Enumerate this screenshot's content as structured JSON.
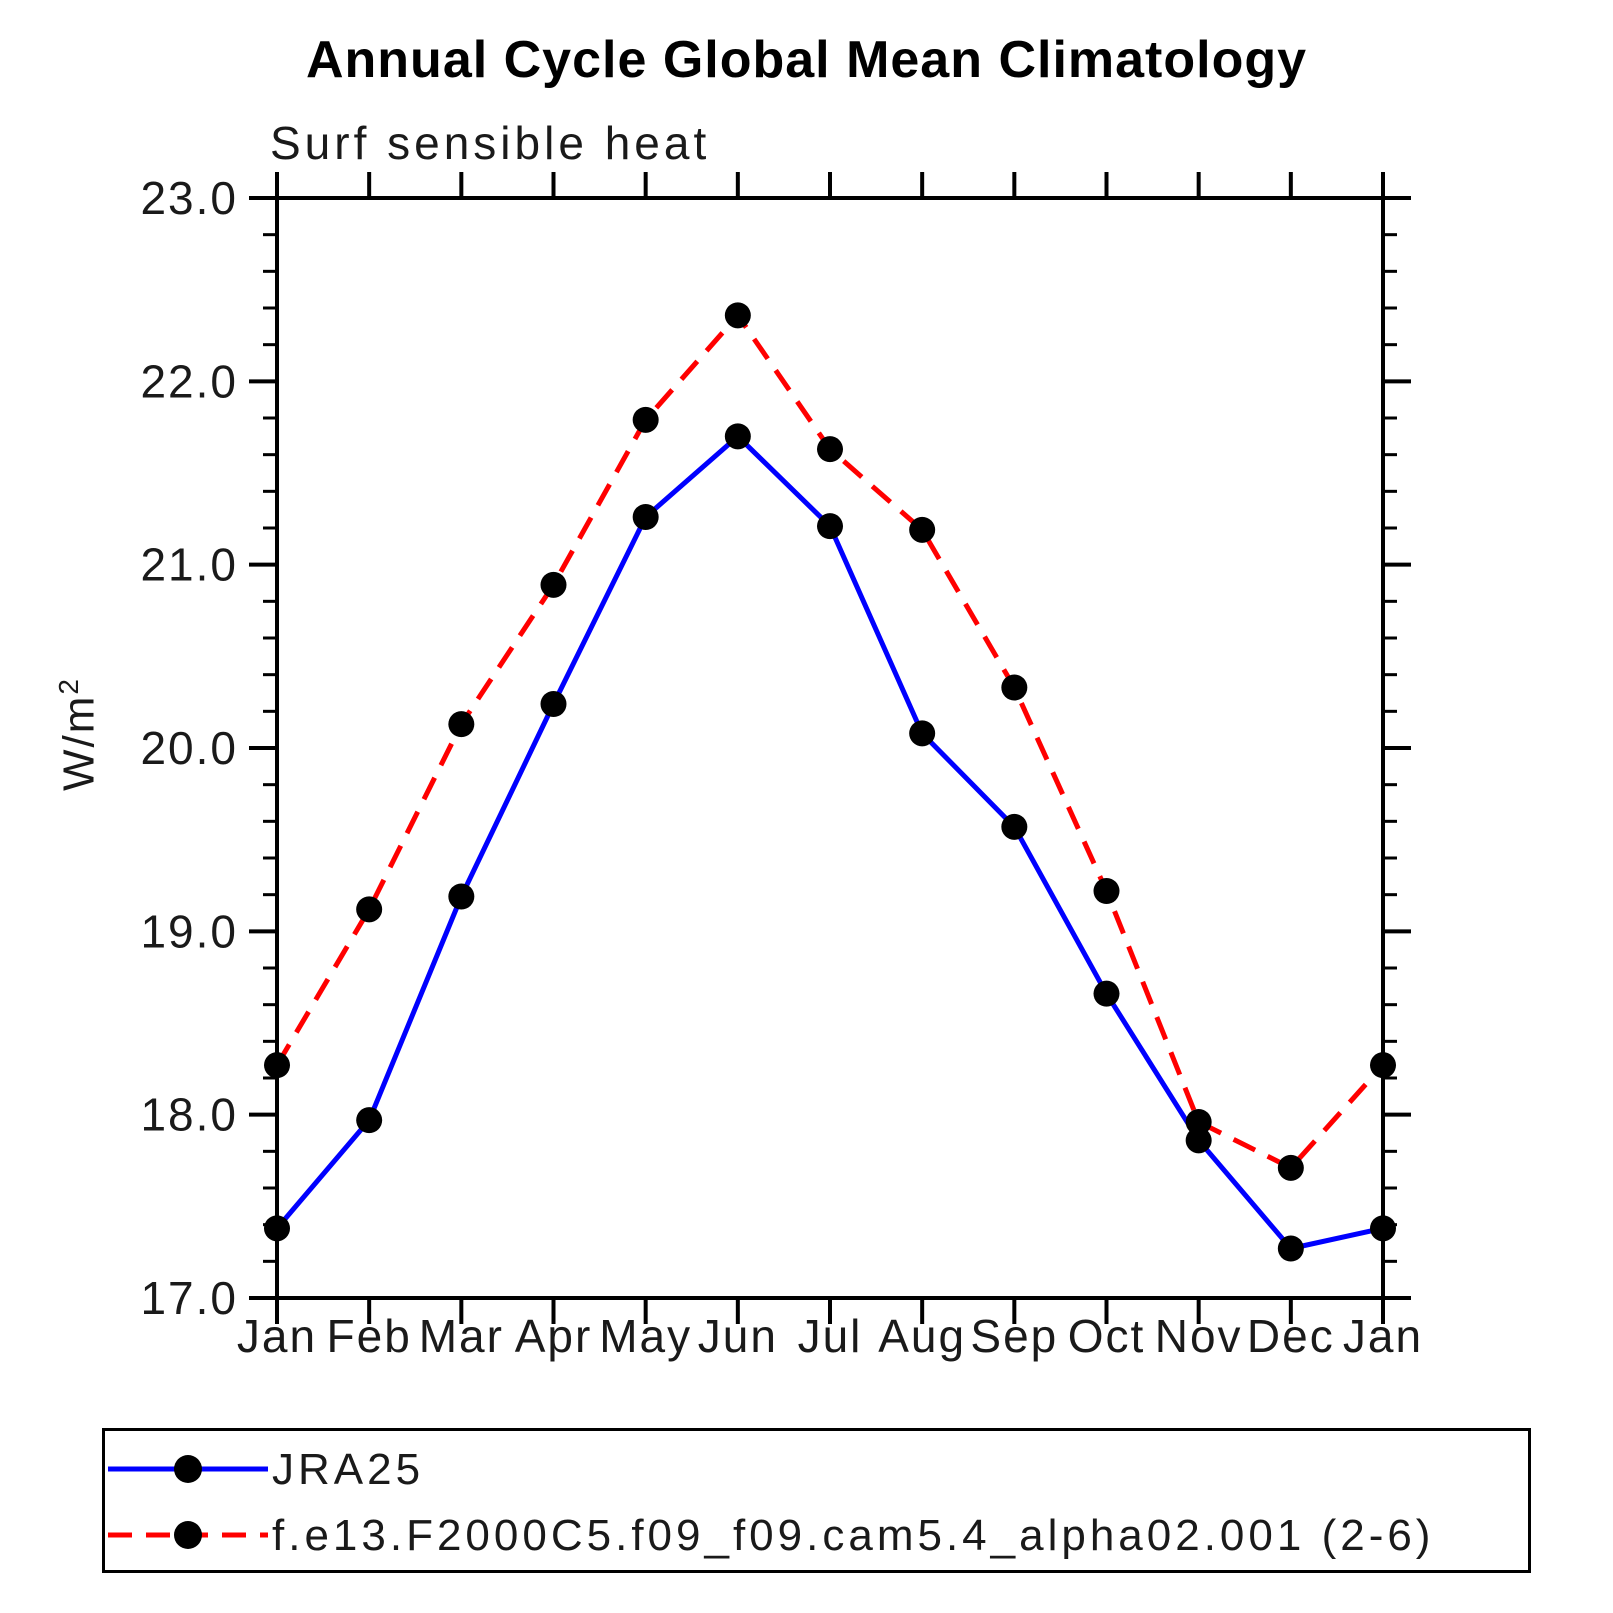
{
  "title": "Annual Cycle Global Mean Climatology",
  "subtitle": "Surf sensible heat",
  "y_axis_title": {
    "base": "W/m",
    "sup": "2"
  },
  "chart_data": {
    "type": "line",
    "title": "Annual Cycle Global Mean Climatology",
    "subtitle": "Surf sensible heat",
    "ylabel": "W/m2",
    "xlabel": "",
    "x_categories": [
      "Jan",
      "Feb",
      "Mar",
      "Apr",
      "May",
      "Jun",
      "Jul",
      "Aug",
      "Sep",
      "Oct",
      "Nov",
      "Dec",
      "Jan"
    ],
    "ylim": [
      17.0,
      23.0
    ],
    "ytick_labels": [
      "23.0",
      "22.0",
      "21.0",
      "20.0",
      "19.0",
      "18.0",
      "17.0"
    ],
    "ytick_minor_step": 0.2,
    "grid": "off",
    "legend_position": "bottom",
    "marker_color": "#000000",
    "series": [
      {
        "id": "jra25",
        "name": "JRA25",
        "color": "#0000ff",
        "style": "solid",
        "values": [
          17.38,
          17.97,
          19.19,
          20.24,
          21.26,
          21.7,
          21.21,
          20.08,
          19.57,
          18.66,
          17.86,
          17.27,
          17.38
        ]
      },
      {
        "id": "model",
        "name": "f.e13.F2000C5.f09_f09.cam5.4_alpha02.001 (2-6)",
        "color": "#ff0000",
        "style": "dashed",
        "values": [
          18.27,
          19.12,
          20.13,
          20.89,
          21.79,
          22.36,
          21.63,
          21.19,
          20.33,
          19.22,
          17.96,
          17.71,
          18.27
        ]
      }
    ]
  }
}
